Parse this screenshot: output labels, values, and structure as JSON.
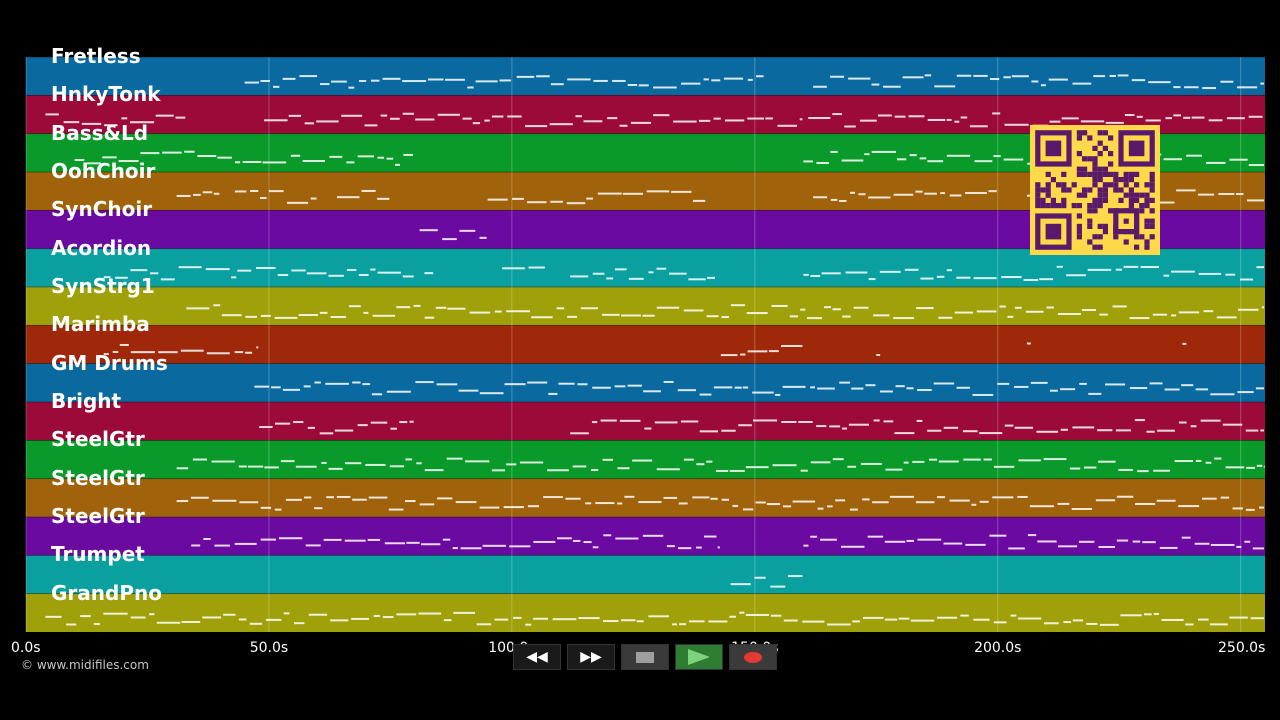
{
  "tracks": [
    {
      "name": "Fretless",
      "color": "#0a6aa0"
    },
    {
      "name": "HnkyTonk",
      "color": "#9c0a3a"
    },
    {
      "name": "Bass&Ld",
      "color": "#0a9a2a"
    },
    {
      "name": "OohChoir",
      "color": "#a0620a"
    },
    {
      "name": "SynChoir",
      "color": "#6a0aa0"
    },
    {
      "name": "Acordion",
      "color": "#0aa0a0"
    },
    {
      "name": "SynStrg1",
      "color": "#a0a00a"
    },
    {
      "name": "Marimba",
      "color": "#a0280a"
    },
    {
      "name": "GM Drums",
      "color": "#0a6aa0"
    },
    {
      "name": "Bright",
      "color": "#9c0a3a"
    },
    {
      "name": "SteelGtr",
      "color": "#0a9a2a"
    },
    {
      "name": "SteelGtr",
      "color": "#a0620a"
    },
    {
      "name": "SteelGtr",
      "color": "#6a0aa0"
    },
    {
      "name": "Trumpet",
      "color": "#0aa0a0"
    },
    {
      "name": "GrandPno",
      "color": "#a0a00a"
    }
  ],
  "timeline": {
    "max_seconds": 255,
    "ticks": [
      {
        "value": 0,
        "label": "0.0s"
      },
      {
        "value": 50,
        "label": "50.0s"
      },
      {
        "value": 100,
        "label": "100.0s"
      },
      {
        "value": 150,
        "label": "150.0s"
      },
      {
        "value": 200,
        "label": "200.0s"
      },
      {
        "value": 250,
        "label": "250.0s"
      }
    ]
  },
  "copyright": "© www.midifiles.com",
  "transport": {
    "rewind_icon": "rewind-icon",
    "forward_icon": "fast-forward-icon",
    "stop_icon": "stop-icon",
    "play_icon": "play-icon",
    "record_icon": "record-icon"
  },
  "qr_code": {
    "color": "#ffd94a",
    "fg": "#5a1a6a"
  }
}
